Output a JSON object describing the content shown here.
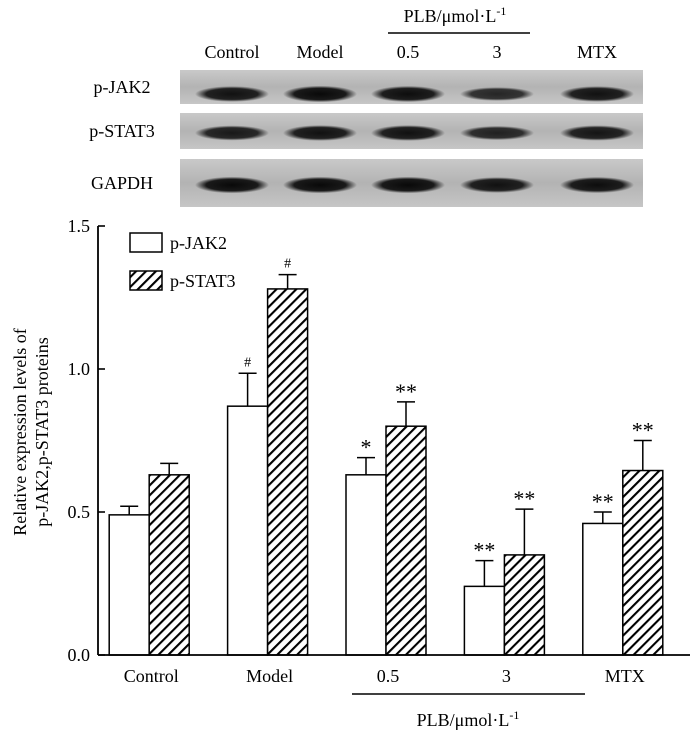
{
  "blot": {
    "lane_labels": [
      "Control",
      "Model",
      "0.5",
      "3",
      "MTX"
    ],
    "group_label": "PLB/μmol·L",
    "group_label_sup": "-1",
    "rows": [
      {
        "label": "p-JAK2",
        "band_intensity": [
          0.85,
          0.95,
          0.9,
          0.6,
          0.85
        ]
      },
      {
        "label": "p-STAT3",
        "band_intensity": [
          0.75,
          0.85,
          0.85,
          0.65,
          0.8
        ]
      },
      {
        "label": "GAPDH",
        "band_intensity": [
          0.95,
          0.95,
          0.95,
          0.85,
          0.9
        ]
      }
    ]
  },
  "chart_data": {
    "type": "bar",
    "categories": [
      "Control",
      "Model",
      "0.5",
      "3",
      "MTX"
    ],
    "group_label": "PLB/μmol·L",
    "group_label_sup": "-1",
    "series": [
      {
        "name": "p-JAK2",
        "pattern": "open",
        "values": [
          0.49,
          0.87,
          0.63,
          0.24,
          0.46
        ],
        "errors": [
          0.03,
          0.115,
          0.06,
          0.09,
          0.04
        ],
        "marks": [
          "",
          "#",
          "*",
          "**",
          "**"
        ]
      },
      {
        "name": "p-STAT3",
        "pattern": "hatched",
        "values": [
          0.63,
          1.28,
          0.8,
          0.35,
          0.645
        ],
        "errors": [
          0.04,
          0.05,
          0.085,
          0.16,
          0.105
        ],
        "marks": [
          "",
          "#",
          "**",
          "**",
          "**"
        ]
      }
    ],
    "ylabel_line1": "Relative expression levels of",
    "ylabel_line2": "p-JAK2,p-STAT3 proteins",
    "ylim": [
      0.0,
      1.5
    ],
    "yticks": [
      "0.0",
      "0.5",
      "1.0",
      "1.5"
    ],
    "ytick_values": [
      0.0,
      0.5,
      1.0,
      1.5
    ],
    "legend_position": "top-left",
    "grid": false
  }
}
